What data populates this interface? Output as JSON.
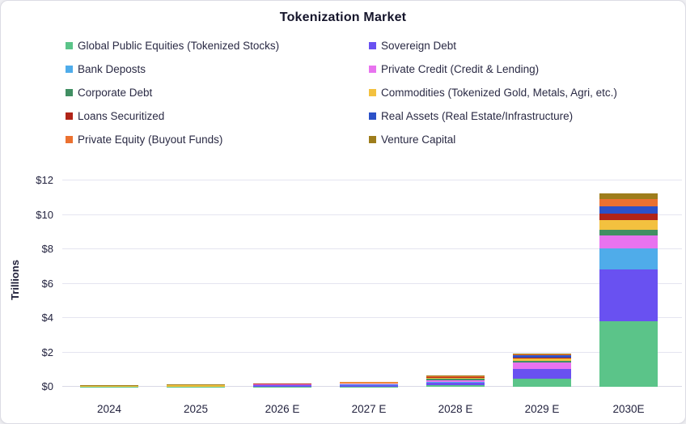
{
  "card": {
    "title": "Tokenization Market"
  },
  "chart_data": {
    "type": "bar",
    "stacked": true,
    "title": "Tokenization Market",
    "xlabel": "",
    "ylabel": "Trillions",
    "ylim": [
      0,
      12
    ],
    "grid": true,
    "legend_position": "top-two-columns",
    "yticks": [
      0,
      2,
      4,
      6,
      8,
      10,
      12
    ],
    "ytick_labels": [
      "$0",
      "$2",
      "$4",
      "$6",
      "$8",
      "$10",
      "$12"
    ],
    "categories": [
      "2024",
      "2025",
      "2026 E",
      "2027 E",
      "2028 E",
      "2029 E",
      "2030E"
    ],
    "series": [
      {
        "name": "Global Public Equities (Tokenized Stocks)",
        "color": "#5BC489",
        "values": [
          0.01,
          0.01,
          0.02,
          0.02,
          0.08,
          0.45,
          3.82
        ]
      },
      {
        "name": "Sovereign Debt",
        "color": "#6951F1",
        "values": [
          0.0,
          0.01,
          0.08,
          0.08,
          0.15,
          0.57,
          3.0
        ]
      },
      {
        "name": "Bank Deposts",
        "color": "#4FACEA",
        "values": [
          0.0,
          0.0,
          0.01,
          0.04,
          0.05,
          0.02,
          1.23
        ]
      },
      {
        "name": "Private Credit (Credit & Lending)",
        "color": "#E873EF",
        "values": [
          0.0,
          0.0,
          0.02,
          0.06,
          0.12,
          0.38,
          0.75
        ]
      },
      {
        "name": "Corporate Debt",
        "color": "#418F63",
        "values": [
          0.0,
          0.0,
          0.0,
          0.01,
          0.05,
          0.09,
          0.33
        ]
      },
      {
        "name": "Commodities (Tokenized Gold, Metals, Agri, etc.)",
        "color": "#F3C13F",
        "values": [
          0.05,
          0.07,
          0.03,
          0.03,
          0.08,
          0.16,
          0.55
        ]
      },
      {
        "name": "Loans Securitized",
        "color": "#B02418",
        "values": [
          0.0,
          0.0,
          0.01,
          0.01,
          0.02,
          0.02,
          0.39
        ]
      },
      {
        "name": "Real Assets (Real Estate/Infrastructure)",
        "color": "#2C51C8",
        "values": [
          0.0,
          0.0,
          0.0,
          0.01,
          0.03,
          0.16,
          0.42
        ]
      },
      {
        "name": "Private Equity (Buyout Funds)",
        "color": "#EB7130",
        "values": [
          0.01,
          0.01,
          0.01,
          0.01,
          0.04,
          0.04,
          0.44
        ]
      },
      {
        "name": "Venture Capital",
        "color": "#9E7D1B",
        "values": [
          0.02,
          0.02,
          0.01,
          0.01,
          0.03,
          0.03,
          0.34
        ]
      }
    ]
  }
}
